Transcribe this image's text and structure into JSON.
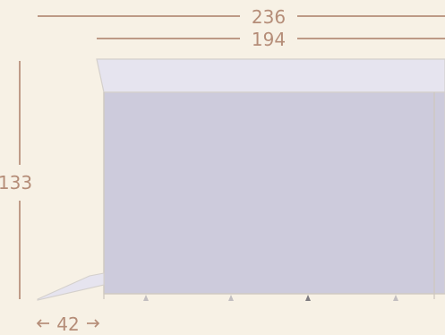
{
  "dimensions": {
    "total_width": "236",
    "canopy_width": "194",
    "height": "133",
    "ramp_length": "42"
  },
  "colors": {
    "background": "#f7f1e5",
    "dimension": "#b58d78",
    "canopy": "#e6e4ef",
    "wall": "#cdcbdc",
    "outline": "#d4d0cc",
    "pegs": "#c2bec0",
    "dark_peg": "#7f7c80"
  }
}
